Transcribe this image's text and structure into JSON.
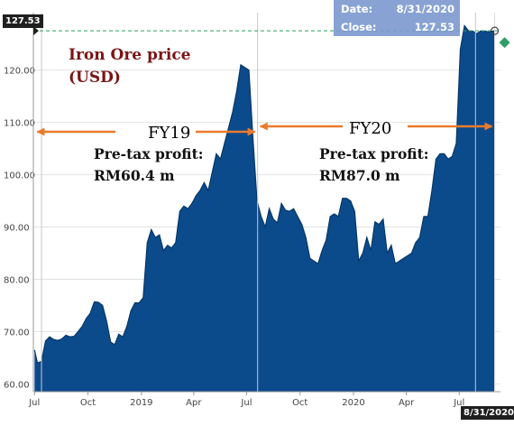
{
  "chart_data": {
    "type": "area",
    "title": "Iron Ore price",
    "subtitle": "(USD)",
    "color": "#0b4b8c",
    "reference_color": "#2e9e66",
    "arrow_color": "#ea7a2c",
    "y_ticks": [
      "60.00",
      "70.00",
      "80.00",
      "90.00",
      "100.00",
      "110.00",
      "120.00"
    ],
    "x_ticks": [
      {
        "label": "Jul",
        "date": "2018-07-01"
      },
      {
        "label": "Oct",
        "date": "2018-10-01"
      },
      {
        "label": "2019",
        "date": "2019-01-01"
      },
      {
        "label": "Apr",
        "date": "2019-04-01"
      },
      {
        "label": "Jul",
        "date": "2019-07-01"
      },
      {
        "label": "Oct",
        "date": "2019-10-01"
      },
      {
        "label": "2020",
        "date": "2020-01-01"
      },
      {
        "label": "Apr",
        "date": "2020-04-01"
      },
      {
        "label": "Jul",
        "date": "2020-07-01"
      }
    ],
    "xlim": [
      "2018-06-29",
      "2020-09-10"
    ],
    "ylim": [
      58.5,
      131
    ],
    "grid": "horizontal",
    "series": [
      {
        "x": [
          "2018-07-01",
          "2018-07-06",
          "2018-07-13",
          "2018-07-20",
          "2018-07-27",
          "2018-08-03",
          "2018-08-10",
          "2018-08-17",
          "2018-08-24",
          "2018-08-31",
          "2018-09-07",
          "2018-09-14",
          "2018-09-21",
          "2018-09-28",
          "2018-10-05",
          "2018-10-12",
          "2018-10-19",
          "2018-10-26",
          "2018-11-02",
          "2018-11-09",
          "2018-11-16",
          "2018-11-23",
          "2018-11-30",
          "2018-12-07",
          "2018-12-14",
          "2018-12-21",
          "2018-12-28",
          "2019-01-04",
          "2019-01-11",
          "2019-01-18",
          "2019-01-25",
          "2019-02-01",
          "2019-02-08",
          "2019-02-15",
          "2019-02-22",
          "2019-03-01",
          "2019-03-08",
          "2019-03-15",
          "2019-03-22",
          "2019-03-29",
          "2019-04-05",
          "2019-04-12",
          "2019-04-19",
          "2019-04-26",
          "2019-05-03",
          "2019-05-10",
          "2019-05-17",
          "2019-05-24",
          "2019-05-31",
          "2019-06-07",
          "2019-06-14",
          "2019-06-21",
          "2019-06-28",
          "2019-07-05",
          "2019-07-12",
          "2019-07-19",
          "2019-07-26",
          "2019-08-02",
          "2019-08-09",
          "2019-08-16",
          "2019-08-23",
          "2019-08-30",
          "2019-09-06",
          "2019-09-13",
          "2019-09-20",
          "2019-09-27",
          "2019-10-04",
          "2019-10-11",
          "2019-10-18",
          "2019-10-25",
          "2019-11-01",
          "2019-11-08",
          "2019-11-15",
          "2019-11-22",
          "2019-11-29",
          "2019-12-06",
          "2019-12-13",
          "2019-12-20",
          "2019-12-27",
          "2020-01-03",
          "2020-01-10",
          "2020-01-17",
          "2020-01-24",
          "2020-01-31",
          "2020-02-07",
          "2020-02-14",
          "2020-02-21",
          "2020-02-28",
          "2020-03-06",
          "2020-03-13",
          "2020-03-20",
          "2020-03-27",
          "2020-04-03",
          "2020-04-10",
          "2020-04-17",
          "2020-04-24",
          "2020-05-01",
          "2020-05-08",
          "2020-05-15",
          "2020-05-22",
          "2020-05-29",
          "2020-06-05",
          "2020-06-12",
          "2020-06-19",
          "2020-06-26",
          "2020-07-03",
          "2020-07-10",
          "2020-07-17",
          "2020-07-24",
          "2020-07-31",
          "2020-08-07",
          "2020-08-14",
          "2020-08-21",
          "2020-08-28",
          "2020-08-31"
        ],
        "y": [
          66.5,
          64.0,
          64.3,
          68.2,
          69.0,
          68.5,
          68.3,
          68.6,
          69.3,
          69.0,
          69.1,
          70.0,
          71.0,
          72.5,
          73.5,
          75.7,
          75.6,
          75.0,
          72.0,
          68.0,
          67.5,
          69.5,
          69.0,
          71.0,
          74.0,
          75.5,
          75.5,
          76.5,
          87.0,
          89.5,
          88.0,
          88.5,
          85.5,
          86.5,
          86.0,
          87.0,
          93.0,
          94.0,
          93.5,
          94.5,
          96.0,
          97.0,
          98.5,
          97.0,
          100.5,
          104.0,
          103.0,
          106.0,
          109.0,
          112.0,
          116.0,
          121.0,
          120.5,
          120.0,
          107.0,
          95.0,
          92.0,
          90.0,
          93.5,
          91.5,
          90.8,
          94.5,
          93.2,
          93.0,
          93.5,
          92.0,
          90.5,
          88.0,
          84.0,
          83.5,
          83.0,
          85.5,
          87.5,
          92.0,
          92.5,
          92.0,
          95.5,
          95.5,
          95.0,
          93.0,
          83.5,
          85.0,
          88.0,
          85.5,
          91.0,
          90.5,
          91.5,
          85.0,
          86.5,
          83.0,
          83.5,
          84.0,
          84.5,
          85.0,
          87.0,
          88.0,
          92.0,
          92.0,
          97.0,
          103.0,
          104.0,
          104.0,
          103.0,
          103.5,
          106.0,
          124.0,
          128.5,
          127.5,
          127.5,
          127.0,
          127.5,
          127.5,
          127.3,
          127.5,
          127.53
        ]
      }
    ],
    "reference_line": {
      "date": "2020-08-31",
      "value": 127.53,
      "label": "127.53"
    },
    "tooltip": {
      "date_label": "Date:",
      "date_value": "8/31/2020",
      "close_label": "Close:",
      "close_value": "127.53"
    },
    "crosshair_date_label": "8/31/2020",
    "annotations": {
      "fy19": {
        "label": "FY19",
        "profit_label": "Pre-tax profit:",
        "profit_value": "RM60.4 m",
        "start": "2018-07-01",
        "end": "2019-07-20"
      },
      "fy20": {
        "label": "FY20",
        "profit_label": "Pre-tax profit:",
        "profit_value": "RM87.0 m",
        "start": "2019-07-20",
        "end": "2020-08-31"
      }
    },
    "period_dividers": [
      "2018-07-13",
      "2019-07-20",
      "2020-07-29"
    ]
  }
}
